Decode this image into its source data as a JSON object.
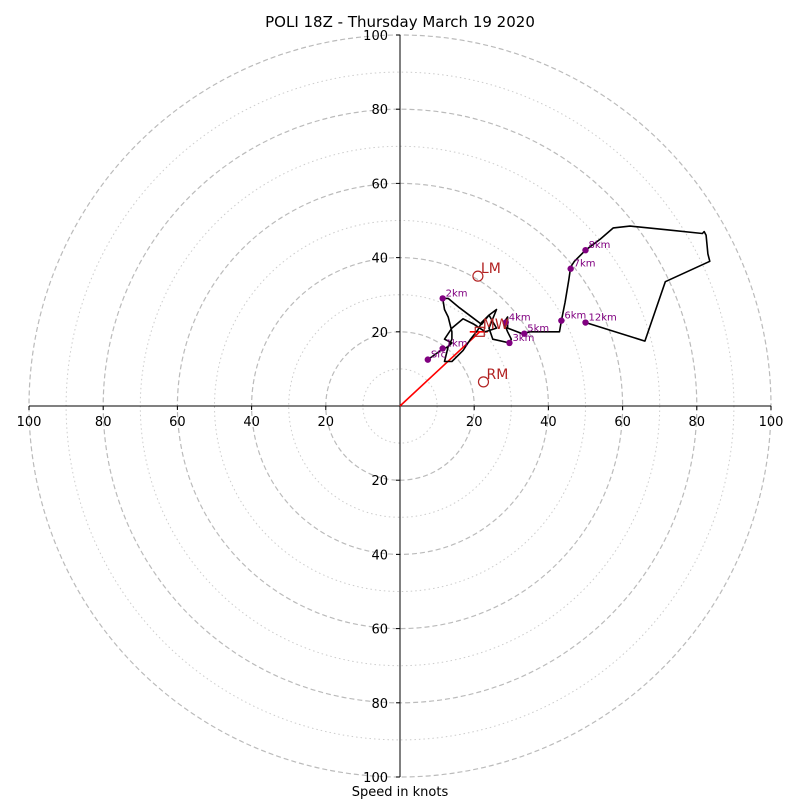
{
  "chart_data": {
    "type": "scatter",
    "subtype": "hodograph",
    "title": "POLI 18Z - Thursday March 19 2020",
    "xlabel": "Speed in knots",
    "xlim": [
      -100,
      100
    ],
    "ylim": [
      -100,
      100
    ],
    "x_tick_labels": [
      "100",
      "80",
      "60",
      "40",
      "20",
      "20",
      "40",
      "60",
      "80",
      "100"
    ],
    "y_tick_labels": [
      "100",
      "80",
      "60",
      "40",
      "20",
      "20",
      "40",
      "60",
      "80",
      "100"
    ],
    "rings_dashed": [
      20,
      40,
      60,
      80,
      100
    ],
    "rings_dotted": [
      10,
      30,
      50,
      70,
      90
    ],
    "grid": true,
    "hodograph_trace": [
      [
        7.5,
        12.5
      ],
      [
        11,
        15
      ],
      [
        13,
        16
      ],
      [
        14,
        17
      ],
      [
        12,
        18
      ],
      [
        14,
        21
      ],
      [
        17,
        23.5
      ],
      [
        20,
        22
      ],
      [
        23,
        20
      ],
      [
        26,
        21
      ],
      [
        24,
        24.5
      ],
      [
        22,
        22
      ],
      [
        20,
        23.5
      ],
      [
        16,
        26.5
      ],
      [
        13,
        29
      ],
      [
        11.5,
        29
      ],
      [
        12,
        26
      ],
      [
        13,
        24
      ],
      [
        14,
        20
      ],
      [
        14,
        18
      ],
      [
        13,
        16
      ],
      [
        12,
        12
      ],
      [
        14,
        12
      ],
      [
        17,
        15
      ],
      [
        19,
        18
      ],
      [
        21,
        20.5
      ],
      [
        22,
        22.5
      ],
      [
        24,
        24.5
      ],
      [
        26,
        26
      ],
      [
        24,
        21
      ],
      [
        25,
        18
      ],
      [
        29.5,
        17
      ],
      [
        30,
        18
      ],
      [
        29,
        20
      ],
      [
        28,
        22.5
      ],
      [
        29,
        24
      ],
      [
        29,
        21
      ],
      [
        33,
        19.5
      ],
      [
        35,
        20
      ],
      [
        42,
        20
      ],
      [
        43,
        20
      ],
      [
        43.5,
        23
      ],
      [
        44.5,
        28
      ],
      [
        45.5,
        34
      ],
      [
        46,
        37.5
      ],
      [
        47,
        39
      ],
      [
        50,
        42
      ],
      [
        54,
        45
      ],
      [
        57.5,
        48
      ],
      [
        62,
        48.5
      ],
      [
        72,
        47.5
      ],
      [
        81.5,
        46.5
      ],
      [
        82,
        47
      ],
      [
        82.5,
        46
      ],
      [
        83,
        41
      ],
      [
        83.5,
        39
      ],
      [
        71.5,
        33.5
      ],
      [
        66,
        17.5
      ],
      [
        50,
        22.5
      ]
    ],
    "height_points": [
      {
        "label": "Sfc",
        "x": 7.5,
        "y": 12.5
      },
      {
        "label": "1km",
        "x": 11.5,
        "y": 15.5
      },
      {
        "label": "2km",
        "x": 11.5,
        "y": 29
      },
      {
        "label": "3km",
        "x": 29.5,
        "y": 17
      },
      {
        "label": "4km",
        "x": 28.5,
        "y": 22.5
      },
      {
        "label": "5km",
        "x": 33.5,
        "y": 19.5
      },
      {
        "label": "6km",
        "x": 43.5,
        "y": 23
      },
      {
        "label": "7km",
        "x": 46,
        "y": 37
      },
      {
        "label": "8km",
        "x": 50,
        "y": 42
      },
      {
        "label": "12km",
        "x": 50,
        "y": 22.5
      }
    ],
    "storm_motions": [
      {
        "label": "LM",
        "x": 21,
        "y": 35
      },
      {
        "label": "RM",
        "x": 22.5,
        "y": 6.5
      },
      {
        "label": "MW",
        "x": 21.5,
        "y": 20
      }
    ],
    "shear_vector": {
      "from": [
        0,
        0
      ],
      "to": [
        21.5,
        20
      ]
    },
    "colors": {
      "trace": "#000000",
      "height_points": "#800080",
      "storm_motion": "#b22222",
      "shear_vector": "#ff0000",
      "grid": "#bbbbbb"
    }
  }
}
